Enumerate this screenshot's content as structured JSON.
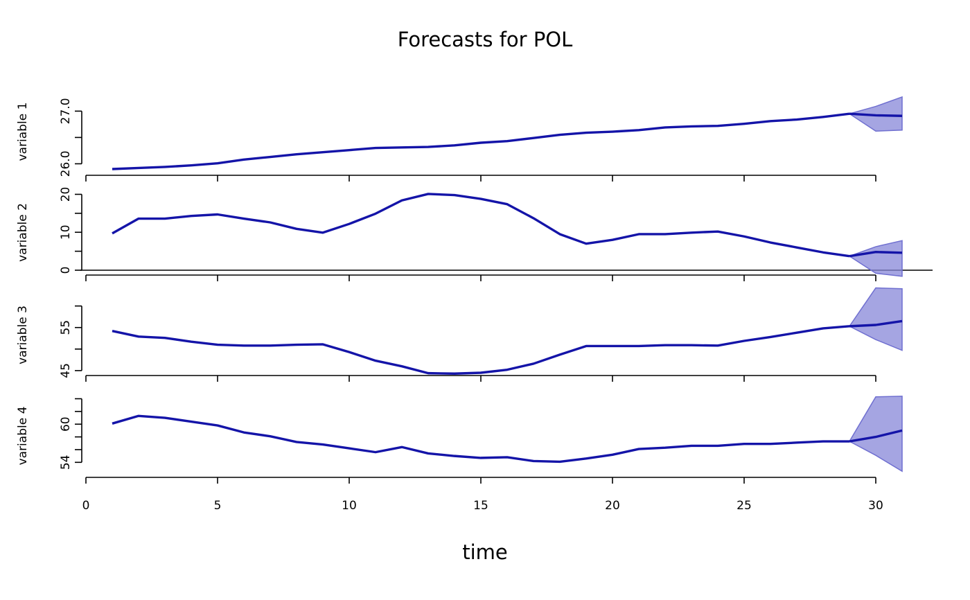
{
  "chart_data": {
    "type": "line",
    "title": "Forecasts for POL",
    "xlabel": "time",
    "xlim": [
      0,
      31
    ],
    "x_ticks": [
      0,
      5,
      10,
      15,
      20,
      25,
      30
    ],
    "colors": {
      "line": "#1414a8",
      "band_fill": "#8787d8",
      "band_stroke": "#6f6fd0"
    },
    "series": [
      {
        "name": "variable 1",
        "ylim": [
          25.9,
          27.4
        ],
        "y_ticks": [
          26.0,
          26.5,
          27.0
        ],
        "y_tick_labels": [
          "26.0",
          "",
          "27.0"
        ],
        "x": [
          1,
          2,
          3,
          4,
          5,
          6,
          7,
          8,
          9,
          10,
          11,
          12,
          13,
          14,
          15,
          16,
          17,
          18,
          19,
          20,
          21,
          22,
          23,
          24,
          25,
          26,
          27,
          28,
          29
        ],
        "values": [
          25.9,
          25.92,
          25.94,
          25.97,
          26.01,
          26.08,
          26.13,
          26.18,
          26.22,
          26.26,
          26.3,
          26.31,
          26.32,
          26.35,
          26.4,
          26.43,
          26.49,
          26.55,
          26.59,
          26.61,
          26.64,
          26.69,
          26.71,
          26.72,
          26.76,
          26.81,
          26.84,
          26.89,
          26.95
        ],
        "forecast": {
          "x": [
            29,
            30,
            31
          ],
          "mean": [
            26.95,
            26.92,
            26.91
          ],
          "lower": [
            26.95,
            26.62,
            26.64
          ],
          "upper": [
            26.95,
            27.09,
            27.27
          ]
        }
      },
      {
        "name": "variable 2",
        "ylim": [
          0,
          21
        ],
        "y_ticks": [
          0,
          5,
          10,
          15,
          20
        ],
        "y_tick_labels": [
          "0",
          "",
          "10",
          "",
          "20"
        ],
        "zero_line": true,
        "x": [
          1,
          2,
          3,
          4,
          5,
          6,
          7,
          8,
          9,
          10,
          11,
          12,
          13,
          14,
          15,
          16,
          17,
          18,
          19,
          20,
          21,
          22,
          23,
          24,
          25,
          26,
          27,
          28,
          29
        ],
        "values": [
          9.7,
          13.6,
          13.6,
          14.3,
          14.7,
          13.6,
          12.6,
          10.9,
          9.9,
          12.2,
          14.9,
          18.4,
          20.1,
          19.8,
          18.8,
          17.4,
          13.7,
          9.5,
          7,
          8,
          9.5,
          9.5,
          9.9,
          10.2,
          8.9,
          7.3,
          6,
          4.7,
          3.7
        ],
        "forecast": {
          "x": [
            29,
            30,
            31
          ],
          "mean": [
            3.7,
            4.8,
            4.6
          ],
          "lower": [
            3.7,
            -0.8,
            -1.6
          ],
          "upper": [
            3.7,
            6.2,
            7.8
          ]
        }
      },
      {
        "name": "variable 3",
        "ylim": [
          44.5,
          63
        ],
        "y_ticks": [
          45,
          50,
          55,
          60
        ],
        "y_tick_labels": [
          "45",
          "",
          "55",
          ""
        ],
        "x": [
          1,
          2,
          3,
          4,
          5,
          6,
          7,
          8,
          9,
          10,
          11,
          12,
          13,
          14,
          15,
          16,
          17,
          18,
          19,
          20,
          21,
          22,
          23,
          24,
          25,
          26,
          27,
          28,
          29
        ],
        "values": [
          54.2,
          52.9,
          52.6,
          51.7,
          51,
          50.8,
          50.8,
          51,
          51.1,
          49.3,
          47.3,
          46,
          44.4,
          44.3,
          44.5,
          45.2,
          46.6,
          48.7,
          50.7,
          50.7,
          50.7,
          50.9,
          50.9,
          50.8,
          51.9,
          52.8,
          53.8,
          54.8,
          55.3
        ],
        "forecast": {
          "x": [
            29,
            30,
            31
          ],
          "mean": [
            55.3,
            55.6,
            56.5
          ],
          "lower": [
            55.3,
            52.2,
            49.7
          ],
          "upper": [
            55.3,
            64.2,
            64
          ]
        }
      },
      {
        "name": "variable 4",
        "ylim": [
          52.4,
          64.6
        ],
        "y_ticks": [
          54,
          56,
          58,
          60,
          62,
          64
        ],
        "y_tick_labels": [
          "54",
          "",
          "",
          "60",
          "",
          ""
        ],
        "x": [
          1,
          2,
          3,
          4,
          5,
          6,
          7,
          8,
          9,
          10,
          11,
          12,
          13,
          14,
          15,
          16,
          17,
          18,
          19,
          20,
          21,
          22,
          23,
          24,
          25,
          26,
          27,
          28,
          29
        ],
        "values": [
          60.1,
          61.3,
          61,
          60.4,
          59.8,
          58.7,
          58.1,
          57.2,
          56.8,
          56.2,
          55.6,
          56.4,
          55.4,
          55,
          54.7,
          54.8,
          54.2,
          54.1,
          54.6,
          55.2,
          56.1,
          56.3,
          56.6,
          56.6,
          56.9,
          56.9,
          57.1,
          57.3,
          57.3
        ],
        "forecast": {
          "x": [
            29,
            30,
            31
          ],
          "mean": [
            57.3,
            58,
            59
          ],
          "lower": [
            57.3,
            55.1,
            52.6
          ],
          "upper": [
            57.3,
            64.3,
            64.4
          ]
        }
      }
    ]
  }
}
